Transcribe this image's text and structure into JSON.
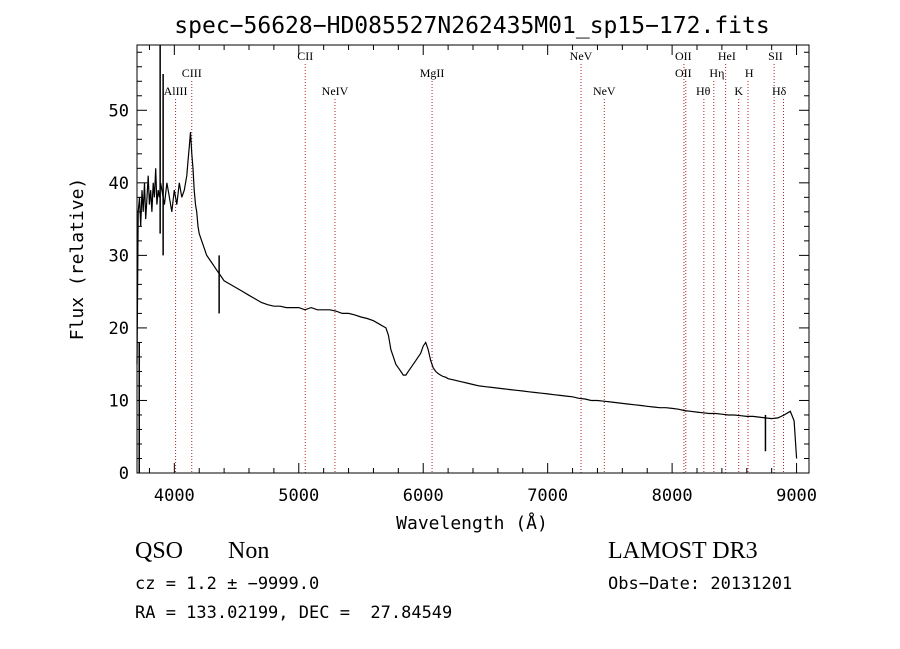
{
  "chart_data": {
    "type": "line",
    "title": "spec−56628−HD085527N262435M01_sp15−172.fits",
    "xlabel": "Wavelength (Å)",
    "ylabel": "Flux (relative)",
    "xlim": [
      3700,
      9100
    ],
    "ylim": [
      0,
      59
    ],
    "xticks": [
      4000,
      5000,
      6000,
      7000,
      8000,
      9000
    ],
    "yticks": [
      0,
      10,
      20,
      30,
      40,
      50
    ],
    "grid": false,
    "line_color": "#000000",
    "marker_color": "#b22222",
    "series": [
      {
        "x": [
          3700,
          3710,
          3720,
          3730,
          3740,
          3750,
          3760,
          3770,
          3780,
          3790,
          3800,
          3810,
          3820,
          3830,
          3840,
          3850,
          3860,
          3870,
          3880,
          3890,
          3900,
          3920,
          3940,
          3960,
          3980,
          4000,
          4020,
          4040,
          4060,
          4080,
          4100,
          4110,
          4120,
          4130,
          4140,
          4150,
          4160,
          4170,
          4180,
          4190,
          4200,
          4220,
          4240,
          4260,
          4280,
          4300,
          4320,
          4340,
          4360,
          4380,
          4400,
          4450,
          4500,
          4550,
          4600,
          4650,
          4700,
          4750,
          4800,
          4850,
          4900,
          4950,
          5000,
          5050,
          5100,
          5150,
          5200,
          5250,
          5300,
          5350,
          5400,
          5450,
          5500,
          5550,
          5600,
          5650,
          5700,
          5720,
          5740,
          5760,
          5780,
          5800,
          5820,
          5840,
          5860,
          5880,
          5900,
          5920,
          5940,
          5960,
          5980,
          6000,
          6020,
          6040,
          6060,
          6080,
          6100,
          6120,
          6140,
          6160,
          6180,
          6200,
          6250,
          6300,
          6350,
          6400,
          6450,
          6500,
          6550,
          6600,
          6650,
          6700,
          6750,
          6800,
          6850,
          6900,
          6950,
          7000,
          7050,
          7100,
          7150,
          7200,
          7250,
          7300,
          7350,
          7400,
          7450,
          7500,
          7550,
          7600,
          7650,
          7700,
          7750,
          7800,
          7850,
          7900,
          7950,
          8000,
          8050,
          8100,
          8150,
          8200,
          8250,
          8300,
          8350,
          8400,
          8450,
          8500,
          8550,
          8600,
          8650,
          8700,
          8750,
          8800,
          8850,
          8900,
          8950,
          8980,
          9000
        ],
        "y": [
          15,
          36,
          38,
          34,
          39,
          36,
          40,
          35,
          38,
          41,
          37,
          39,
          36,
          40,
          38,
          42,
          37,
          39,
          38,
          40,
          39,
          37,
          40,
          38,
          36,
          39,
          37,
          40,
          38,
          39,
          41,
          43,
          45,
          47,
          44,
          42,
          39,
          37,
          36,
          34,
          33,
          32,
          31,
          30,
          29.5,
          29,
          28.5,
          28,
          27.5,
          27,
          26.5,
          26,
          25.5,
          25,
          24.5,
          24,
          23.5,
          23.2,
          23,
          23,
          22.8,
          22.8,
          22.8,
          22.5,
          22.8,
          22.5,
          22.5,
          22.5,
          22.3,
          22,
          22,
          21.8,
          21.5,
          21.3,
          21,
          20.5,
          20,
          19,
          17,
          16,
          15,
          14.5,
          14,
          13.5,
          13.5,
          14,
          14.5,
          15,
          15.5,
          16,
          16.5,
          17.5,
          18,
          17,
          15.5,
          14.5,
          14,
          13.7,
          13.5,
          13.3,
          13.2,
          13,
          12.8,
          12.6,
          12.4,
          12.2,
          12,
          11.9,
          11.8,
          11.7,
          11.6,
          11.5,
          11.4,
          11.3,
          11.2,
          11.1,
          11,
          10.9,
          10.8,
          10.7,
          10.6,
          10.5,
          10.3,
          10.2,
          10,
          10,
          9.9,
          9.8,
          9.7,
          9.6,
          9.5,
          9.4,
          9.3,
          9.2,
          9.1,
          9,
          9,
          8.9,
          8.8,
          8.6,
          8.5,
          8.4,
          8.3,
          8.2,
          8.2,
          8.1,
          8,
          8,
          7.9,
          7.8,
          7.8,
          7.7,
          7.6,
          7.5,
          7.6,
          8,
          8.5,
          7.2,
          2
        ]
      }
    ],
    "spikes": [
      {
        "x": 3718,
        "y1": 0,
        "y2": 18
      },
      {
        "x": 3886,
        "y1": 33,
        "y2": 59
      },
      {
        "x": 3910,
        "y1": 30,
        "y2": 55
      },
      {
        "x": 4360,
        "y1": 22,
        "y2": 30
      },
      {
        "x": 8750,
        "y1": 3,
        "y2": 8
      }
    ],
    "lines": [
      {
        "label": "AlIII",
        "x": 4010,
        "row": 2,
        "label_x": 4010
      },
      {
        "label": "CIII",
        "x": 4140,
        "row": 1,
        "label_x": 4140
      },
      {
        "label": "CII",
        "x": 5052,
        "row": 0,
        "label_x": 5052
      },
      {
        "label": "NeIV",
        "x": 5291,
        "row": 2,
        "label_x": 5291
      },
      {
        "label": "MgII",
        "x": 6071,
        "row": 1,
        "label_x": 6071
      },
      {
        "label": "NeV",
        "x": 7268,
        "row": 0,
        "label_x": 7268
      },
      {
        "label": "NeV",
        "x": 7455,
        "row": 2,
        "label_x": 7455
      },
      {
        "label": "OII",
        "x": 8095,
        "row": 0,
        "label_x": 8090
      },
      {
        "label": "OII",
        "x": 8110,
        "row": 1,
        "label_x": 8090
      },
      {
        "label": "Hθ",
        "x": 8255,
        "row": 2,
        "label_x": 8250
      },
      {
        "label": "Hη",
        "x": 8335,
        "row": 1,
        "label_x": 8360
      },
      {
        "label": "HeI",
        "x": 8430,
        "row": 0,
        "label_x": 8440
      },
      {
        "label": "K",
        "x": 8535,
        "row": 2,
        "label_x": 8535
      },
      {
        "label": "H",
        "x": 8610,
        "row": 1,
        "label_x": 8620
      },
      {
        "label": "SII",
        "x": 8820,
        "row": 0,
        "label_x": 8830
      },
      {
        "label": "Hδ",
        "x": 8895,
        "row": 2,
        "label_x": 8860
      }
    ]
  },
  "info": {
    "class": "QSO",
    "subclass": "Non",
    "survey": "LAMOST DR3",
    "cz": "cz = 1.2 ± −9999.0",
    "obs_date": "Obs−Date: 20131201",
    "coords": "RA = 133.02199, DEC =  27.84549"
  }
}
